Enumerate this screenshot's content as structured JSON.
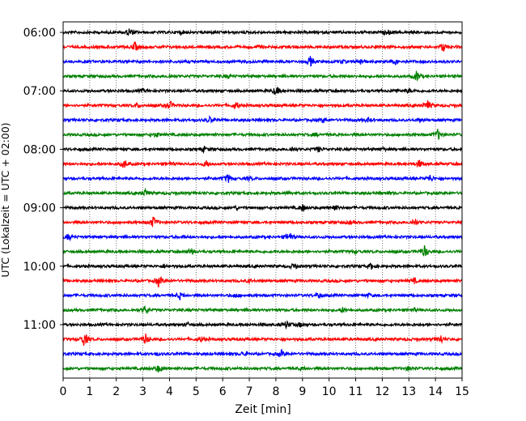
{
  "chart_data": {
    "type": "line",
    "subtype": "helicorder",
    "xlabel": "Zeit  [min]",
    "ylabel": "UTC (Lokalzeit = UTC + 02:00)",
    "x_ticks": [
      0,
      1,
      2,
      3,
      4,
      5,
      6,
      7,
      8,
      9,
      10,
      11,
      12,
      13,
      14,
      15
    ],
    "xlim": [
      0,
      15
    ],
    "y_tick_labels": [
      "06:00",
      "07:00",
      "08:00",
      "09:00",
      "10:00",
      "11:00"
    ],
    "grid": "vertical-dotted",
    "line_colors": [
      "#000000",
      "#ff0000",
      "#0000ff",
      "#008000"
    ],
    "traces": [
      {
        "time": "06:00",
        "color": "#000000",
        "events": [
          [
            2.5,
            1.0
          ],
          [
            12.2,
            0.4
          ],
          [
            4.4,
            0.3
          ]
        ]
      },
      {
        "time": "06:15",
        "color": "#ff0000",
        "events": [
          [
            2.7,
            1.0
          ],
          [
            14.3,
            1.0
          ],
          [
            7.4,
            0.3
          ]
        ]
      },
      {
        "time": "06:30",
        "color": "#0000ff",
        "events": [
          [
            9.3,
            1.0
          ],
          [
            11.2,
            0.6
          ],
          [
            12.5,
            0.5
          ],
          [
            10.5,
            0.3
          ]
        ]
      },
      {
        "time": "06:45",
        "color": "#008000",
        "events": [
          [
            13.3,
            1.1
          ],
          [
            4.0,
            0.4
          ],
          [
            6.2,
            0.3
          ]
        ]
      },
      {
        "time": "07:00",
        "color": "#000000",
        "events": [
          [
            8.0,
            1.0
          ],
          [
            12.5,
            0.5
          ],
          [
            13.0,
            0.4
          ],
          [
            3.0,
            0.3
          ]
        ]
      },
      {
        "time": "07:15",
        "color": "#ff0000",
        "events": [
          [
            4.0,
            1.0
          ],
          [
            13.7,
            1.0
          ],
          [
            6.5,
            0.7
          ],
          [
            2.8,
            0.4
          ]
        ]
      },
      {
        "time": "07:30",
        "color": "#0000ff",
        "events": [
          [
            5.5,
            0.6
          ],
          [
            9.8,
            0.5
          ],
          [
            11.5,
            0.4
          ],
          [
            13.4,
            0.3
          ]
        ]
      },
      {
        "time": "07:45",
        "color": "#008000",
        "events": [
          [
            14.1,
            1.1
          ],
          [
            3.5,
            0.5
          ],
          [
            9.5,
            0.3
          ]
        ]
      },
      {
        "time": "08:00",
        "color": "#000000",
        "events": [
          [
            5.3,
            0.5
          ],
          [
            8.6,
            0.5
          ],
          [
            9.6,
            0.5
          ],
          [
            12.0,
            0.3
          ]
        ]
      },
      {
        "time": "08:15",
        "color": "#ff0000",
        "events": [
          [
            2.3,
            0.9
          ],
          [
            5.4,
            0.8
          ],
          [
            13.4,
            0.8
          ],
          [
            4.0,
            0.4
          ]
        ]
      },
      {
        "time": "08:30",
        "color": "#0000ff",
        "events": [
          [
            6.2,
            0.9
          ],
          [
            13.8,
            0.7
          ],
          [
            7.0,
            0.3
          ]
        ]
      },
      {
        "time": "08:45",
        "color": "#008000",
        "events": [
          [
            3.1,
            0.7
          ],
          [
            12.2,
            0.3
          ],
          [
            8.5,
            0.3
          ]
        ]
      },
      {
        "time": "09:00",
        "color": "#000000",
        "events": [
          [
            9.0,
            0.7
          ],
          [
            10.2,
            0.7
          ],
          [
            6.5,
            0.3
          ]
        ]
      },
      {
        "time": "09:15",
        "color": "#ff0000",
        "events": [
          [
            3.4,
            1.2
          ],
          [
            13.2,
            0.8
          ],
          [
            10.8,
            0.3
          ]
        ]
      },
      {
        "time": "09:30",
        "color": "#0000ff",
        "events": [
          [
            8.5,
            1.1
          ],
          [
            0.2,
            0.6
          ],
          [
            4.5,
            0.3
          ]
        ]
      },
      {
        "time": "09:45",
        "color": "#008000",
        "events": [
          [
            13.6,
            1.3
          ],
          [
            4.8,
            0.6
          ],
          [
            11.0,
            0.3
          ]
        ]
      },
      {
        "time": "10:00",
        "color": "#000000",
        "events": [
          [
            8.7,
            0.7
          ],
          [
            11.6,
            0.6
          ],
          [
            3.8,
            0.3
          ]
        ]
      },
      {
        "time": "10:15",
        "color": "#ff0000",
        "events": [
          [
            3.6,
            1.2
          ],
          [
            13.2,
            0.5
          ],
          [
            7.0,
            0.3
          ]
        ]
      },
      {
        "time": "10:30",
        "color": "#0000ff",
        "events": [
          [
            4.4,
            0.7
          ],
          [
            9.6,
            0.6
          ],
          [
            6.5,
            0.4
          ],
          [
            11.5,
            0.3
          ]
        ]
      },
      {
        "time": "10:45",
        "color": "#008000",
        "events": [
          [
            3.1,
            0.9
          ],
          [
            10.5,
            0.5
          ],
          [
            13.2,
            0.3
          ]
        ]
      },
      {
        "time": "11:00",
        "color": "#000000",
        "events": [
          [
            8.4,
            0.8
          ],
          [
            8.9,
            0.4
          ],
          [
            4.7,
            0.3
          ]
        ]
      },
      {
        "time": "11:15",
        "color": "#ff0000",
        "events": [
          [
            0.8,
            1.6
          ],
          [
            3.1,
            1.0
          ],
          [
            14.2,
            0.9
          ],
          [
            5.2,
            0.5
          ]
        ]
      },
      {
        "time": "11:30",
        "color": "#0000ff",
        "events": [
          [
            8.2,
            0.7
          ],
          [
            6.8,
            0.5
          ],
          [
            3.5,
            0.3
          ]
        ]
      },
      {
        "time": "11:45",
        "color": "#008000",
        "events": [
          [
            3.6,
            0.8
          ],
          [
            13.0,
            0.5
          ],
          [
            9.0,
            0.3
          ]
        ]
      }
    ]
  }
}
